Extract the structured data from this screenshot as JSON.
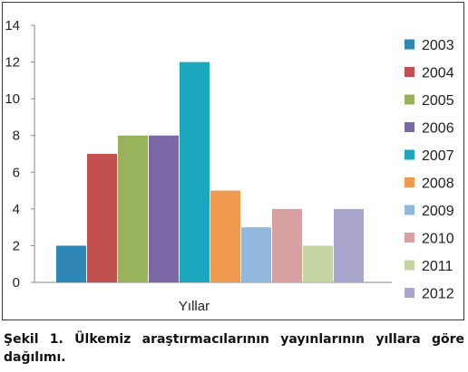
{
  "chart_data": {
    "type": "bar",
    "categories": [
      "Yıllar"
    ],
    "xlabel": "Yıllar",
    "ylabel": "",
    "ylim": [
      0,
      14
    ],
    "yticks": [
      0,
      2,
      4,
      6,
      8,
      10,
      12,
      14
    ],
    "grid": false,
    "legend_position": "right",
    "series": [
      {
        "name": "2003",
        "values": [
          2
        ],
        "color": "#2f87b7"
      },
      {
        "name": "2004",
        "values": [
          7
        ],
        "color": "#c2504e"
      },
      {
        "name": "2005",
        "values": [
          8
        ],
        "color": "#98b35b"
      },
      {
        "name": "2006",
        "values": [
          8
        ],
        "color": "#7b68a6"
      },
      {
        "name": "2007",
        "values": [
          12
        ],
        "color": "#1ba8be"
      },
      {
        "name": "2008",
        "values": [
          5
        ],
        "color": "#ef9a4f"
      },
      {
        "name": "2009",
        "values": [
          3
        ],
        "color": "#93b8dd"
      },
      {
        "name": "2010",
        "values": [
          4
        ],
        "color": "#d8a0a0"
      },
      {
        "name": "2011",
        "values": [
          2
        ],
        "color": "#c3d6a2"
      },
      {
        "name": "2012",
        "values": [
          4
        ],
        "color": "#a9a5cc"
      }
    ]
  },
  "caption": "Şekil 1. Ülkemiz araştırmacılarının yayınlarının yıllara göre dağılımı."
}
